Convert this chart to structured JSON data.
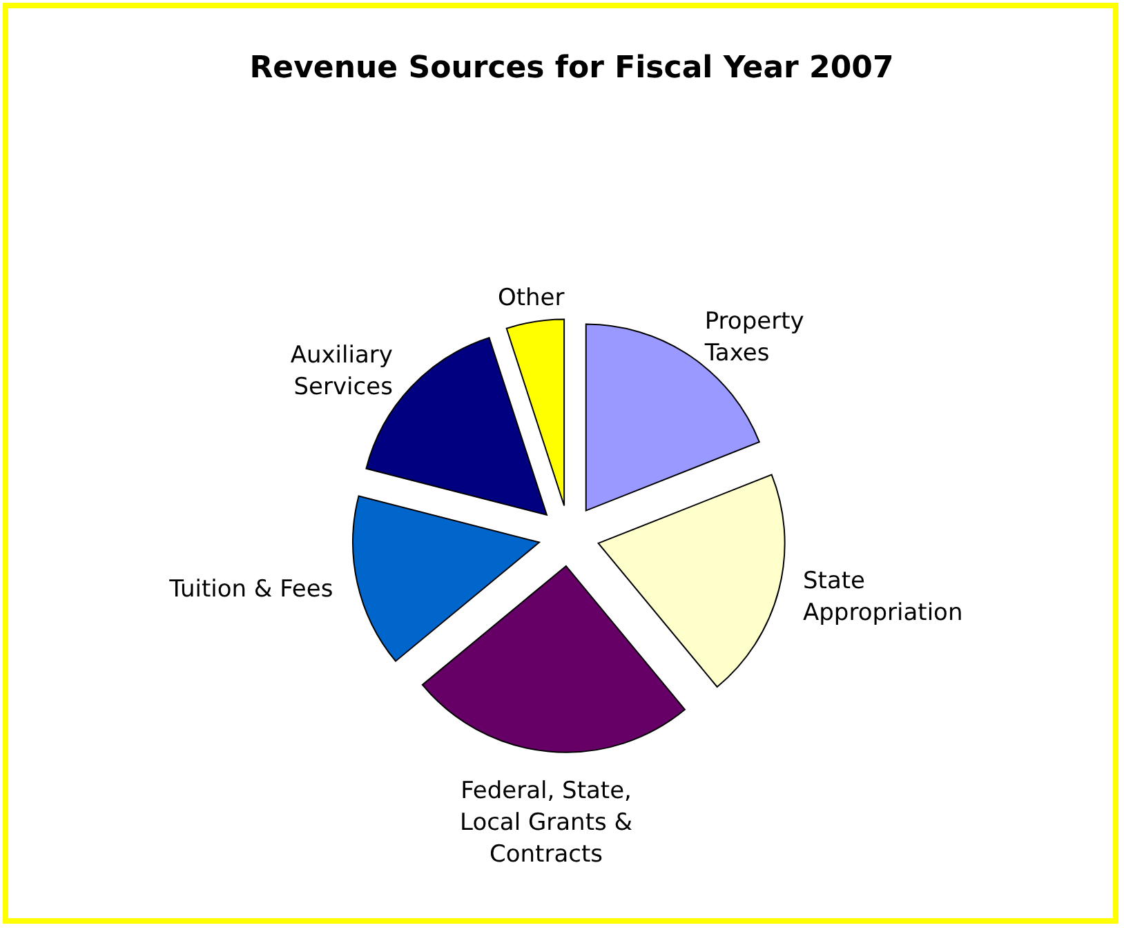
{
  "chart_data": {
    "type": "pie",
    "title": "Revenue Sources for Fiscal Year 2007",
    "categories": [
      "Property Taxes",
      "State Appropriation",
      "Federal, State, Local Grants & Contracts",
      "Tuition & Fees",
      "Auxiliary Services",
      "Other"
    ],
    "values": [
      19,
      20,
      25,
      15,
      16,
      5
    ],
    "colors": [
      "#9999ff",
      "#ffffcc",
      "#660066",
      "#0066cc",
      "#000080",
      "#ffff00"
    ],
    "legend": false
  }
}
